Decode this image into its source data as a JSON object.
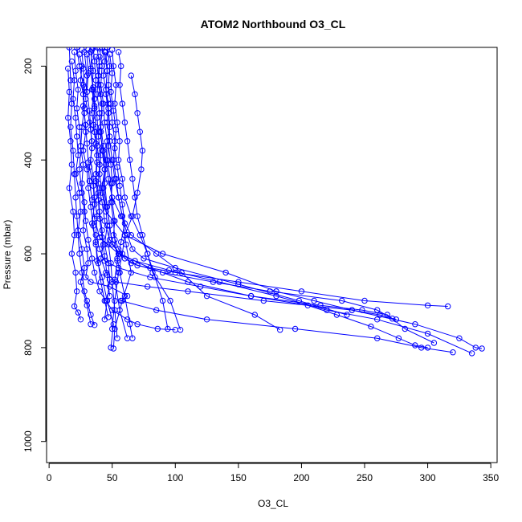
{
  "chart_data": {
    "type": "line",
    "title": "ATOM2 Northbound O3_CL",
    "xlabel": "O3_CL",
    "ylabel": "Pressure (mbar)",
    "xlim": [
      -2,
      355
    ],
    "ylim": [
      1045,
      160
    ],
    "y_reversed": true,
    "x_ticks": [
      0,
      50,
      100,
      150,
      200,
      250,
      300,
      350
    ],
    "y_ticks": [
      200,
      400,
      600,
      800,
      1000
    ],
    "grid": false,
    "legend": "none",
    "color": "#0000ff",
    "marker": "open-circle",
    "series": [
      {
        "x": [
          22,
          24,
          27,
          28,
          26,
          25,
          24,
          26,
          28,
          27,
          30,
          31,
          29,
          33,
          48,
          62,
          57,
          85,
          125,
          195,
          260,
          295,
          320
        ],
        "y": [
          160,
          200,
          240,
          290,
          330,
          380,
          420,
          470,
          510,
          550,
          590,
          620,
          650,
          660,
          670,
          690,
          700,
          720,
          740,
          760,
          780,
          800,
          810
        ]
      },
      {
        "x": [
          31,
          33,
          35,
          34,
          36,
          38,
          37,
          39,
          40,
          42,
          43,
          41,
          45,
          53,
          78,
          110,
          170,
          240,
          290,
          325,
          338,
          343
        ],
        "y": [
          165,
          210,
          250,
          300,
          340,
          390,
          430,
          470,
          510,
          550,
          580,
          610,
          640,
          660,
          670,
          680,
          700,
          720,
          750,
          780,
          800,
          802
        ]
      },
      {
        "x": [
          44,
          46,
          45,
          47,
          48,
          46,
          49,
          50,
          52,
          51,
          55,
          60,
          70,
          100,
          150,
          200,
          250,
          300,
          316
        ],
        "y": [
          170,
          210,
          260,
          300,
          350,
          400,
          450,
          490,
          530,
          560,
          590,
          610,
          625,
          640,
          660,
          680,
          700,
          710,
          712
        ]
      },
      {
        "x": [
          28,
          30,
          29,
          32,
          34,
          33,
          35,
          36,
          38,
          37,
          40,
          44,
          55,
          80,
          120,
          160,
          215,
          248,
          268,
          282,
          305
        ],
        "y": [
          170,
          220,
          270,
          320,
          360,
          400,
          440,
          480,
          520,
          560,
          590,
          615,
          630,
          650,
          670,
          690,
          710,
          720,
          730,
          760,
          790
        ]
      },
      {
        "x": [
          38,
          40,
          39,
          42,
          41,
          43,
          45,
          44,
          46,
          48,
          50,
          56,
          65,
          90,
          130,
          175,
          232,
          260,
          272
        ],
        "y": [
          160,
          200,
          240,
          280,
          330,
          370,
          410,
          450,
          500,
          540,
          580,
          600,
          620,
          640,
          660,
          680,
          700,
          720,
          738
        ]
      },
      {
        "x": [
          35,
          36,
          37,
          36,
          38,
          39,
          41,
          40,
          42,
          45,
          60,
          90,
          140,
          180,
          210,
          240,
          262,
          275
        ],
        "y": [
          160,
          190,
          230,
          270,
          310,
          350,
          390,
          430,
          470,
          510,
          560,
          600,
          640,
          680,
          700,
          720,
          730,
          740
        ]
      },
      {
        "x": [
          46,
          48,
          47,
          49,
          50,
          52,
          51,
          53,
          55,
          58,
          62,
          66,
          75,
          100,
          150,
          198,
          236
        ],
        "y": [
          160,
          200,
          240,
          280,
          320,
          360,
          400,
          440,
          480,
          520,
          560,
          590,
          610,
          630,
          665,
          700,
          730
        ]
      },
      {
        "x": [
          40,
          42,
          41,
          43,
          44,
          46,
          45,
          47,
          50,
          57,
          65,
          85,
          105,
          125,
          163,
          183
        ],
        "y": [
          162,
          200,
          240,
          280,
          320,
          360,
          400,
          440,
          480,
          520,
          560,
          600,
          640,
          690,
          730,
          762
        ]
      },
      {
        "x": [
          26,
          27,
          28,
          27,
          29,
          30,
          31,
          32,
          34,
          36,
          40,
          55,
          80,
          110,
          160,
          205,
          228,
          255,
          277,
          290,
          300
        ],
        "y": [
          165,
          205,
          245,
          285,
          325,
          365,
          405,
          445,
          485,
          525,
          565,
          600,
          630,
          660,
          690,
          710,
          730,
          755,
          780,
          795,
          800
        ]
      },
      {
        "x": [
          33,
          35,
          34,
          36,
          37,
          38,
          40,
          39,
          42,
          44,
          48,
          56,
          68,
          95,
          135,
          180,
          220,
          260,
          300,
          335
        ],
        "y": [
          170,
          210,
          250,
          290,
          330,
          370,
          410,
          450,
          490,
          530,
          570,
          600,
          615,
          635,
          660,
          690,
          720,
          740,
          770,
          812
        ]
      },
      {
        "x": [
          50,
          51,
          53,
          52,
          54,
          56,
          55,
          58,
          60,
          65,
          72,
          78,
          82,
          96,
          104
        ],
        "y": [
          165,
          200,
          240,
          280,
          320,
          360,
          400,
          440,
          480,
          520,
          560,
          600,
          640,
          700,
          762
        ]
      },
      {
        "x": [
          20,
          21,
          23,
          22,
          24,
          25,
          27,
          26,
          28,
          29,
          31,
          34,
          36,
          40,
          45,
          50,
          62,
          70,
          86,
          100
        ],
        "y": [
          170,
          210,
          250,
          290,
          330,
          370,
          410,
          450,
          490,
          530,
          570,
          610,
          640,
          680,
          700,
          720,
          740,
          750,
          760,
          762
        ]
      },
      {
        "x": [
          42,
          44,
          43,
          45,
          47,
          46,
          48,
          50,
          52,
          55,
          58,
          61,
          65,
          58,
          52,
          51
        ],
        "y": [
          160,
          190,
          220,
          250,
          280,
          320,
          360,
          400,
          440,
          480,
          520,
          580,
          640,
          700,
          760,
          802
        ]
      },
      {
        "x": [
          30,
          31,
          30,
          32,
          33,
          34,
          32,
          35,
          36,
          34,
          37,
          38,
          42,
          46,
          51,
          49
        ],
        "y": [
          175,
          215,
          255,
          295,
          335,
          375,
          415,
          455,
          495,
          535,
          575,
          615,
          650,
          700,
          750,
          800
        ]
      },
      {
        "x": [
          16,
          17,
          18,
          17,
          19,
          20,
          21,
          22,
          23,
          24,
          26,
          28,
          30,
          33,
          36
        ],
        "y": [
          160,
          230,
          280,
          330,
          380,
          430,
          480,
          520,
          560,
          600,
          640,
          680,
          700,
          730,
          752
        ]
      },
      {
        "x": [
          65,
          68,
          70,
          72,
          74,
          73,
          70,
          66,
          60,
          58,
          55,
          52,
          50
        ],
        "y": [
          220,
          260,
          300,
          340,
          380,
          420,
          470,
          520,
          560,
          600,
          640,
          700,
          760
        ]
      },
      {
        "x": [
          24,
          26,
          25,
          27,
          28,
          29,
          27,
          30,
          31,
          33,
          35,
          37,
          39,
          41,
          44,
          47
        ],
        "y": [
          175,
          200,
          230,
          260,
          300,
          340,
          380,
          420,
          460,
          500,
          540,
          580,
          620,
          660,
          700,
          735
        ]
      },
      {
        "x": [
          37,
          39,
          38,
          40,
          41,
          42,
          44,
          43,
          46,
          48,
          47,
          49,
          50,
          52,
          54
        ],
        "y": [
          180,
          220,
          260,
          300,
          340,
          380,
          420,
          460,
          500,
          540,
          580,
          620,
          660,
          720,
          780
        ]
      },
      {
        "x": [
          55,
          57,
          56,
          58,
          60,
          62,
          64,
          66,
          68,
          70,
          74,
          78,
          84,
          90,
          94
        ],
        "y": [
          170,
          200,
          240,
          280,
          320,
          360,
          400,
          440,
          480,
          520,
          560,
          600,
          650,
          700,
          760
        ]
      },
      {
        "x": [
          15,
          16,
          15,
          17,
          18,
          16,
          19,
          20,
          18,
          21,
          22,
          20,
          23,
          25
        ],
        "y": [
          205,
          255,
          310,
          360,
          410,
          460,
          510,
          560,
          600,
          640,
          680,
          712,
          725,
          740
        ]
      },
      {
        "x": [
          45,
          46,
          45,
          47,
          48,
          47,
          49,
          50,
          49,
          51,
          52,
          54,
          56,
          60,
          64,
          66
        ],
        "y": [
          170,
          210,
          250,
          290,
          330,
          370,
          410,
          450,
          490,
          530,
          570,
          610,
          640,
          690,
          750,
          780
        ]
      },
      {
        "x": [
          34,
          33,
          35,
          36,
          35,
          37,
          38,
          37,
          39,
          40,
          42,
          44,
          46,
          48
        ],
        "y": [
          165,
          205,
          245,
          285,
          325,
          365,
          405,
          445,
          485,
          525,
          565,
          605,
          645,
          690
        ]
      },
      {
        "x": [
          48,
          50,
          49,
          51,
          53,
          52,
          54,
          56,
          58,
          60,
          57,
          54,
          52,
          56,
          62
        ],
        "y": [
          175,
          215,
          255,
          295,
          335,
          375,
          415,
          455,
          495,
          535,
          575,
          615,
          655,
          720,
          780
        ]
      },
      {
        "x": [
          18,
          20,
          19,
          21,
          22,
          23,
          21,
          24,
          25,
          23,
          26,
          28,
          25,
          30,
          33
        ],
        "y": [
          190,
          230,
          270,
          310,
          350,
          390,
          430,
          470,
          510,
          550,
          590,
          630,
          660,
          710,
          750
        ]
      },
      {
        "x": [
          40,
          39,
          41,
          42,
          40,
          43,
          44,
          42,
          45,
          46,
          44,
          47,
          48,
          46,
          44
        ],
        "y": [
          180,
          220,
          260,
          300,
          340,
          380,
          420,
          460,
          500,
          540,
          580,
          620,
          655,
          700,
          740
        ]
      }
    ]
  }
}
